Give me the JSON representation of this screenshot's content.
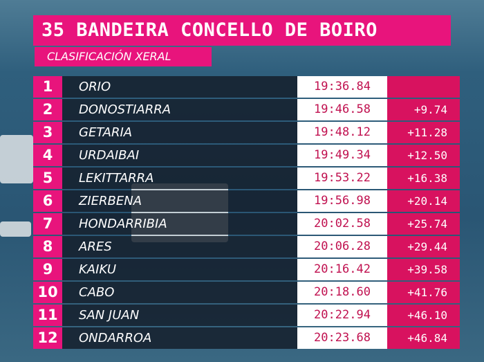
{
  "header": {
    "title": "35 BANDEIRA CONCELLO DE BOIRO",
    "subtitle": "CLASIFICACIÓN XERAL"
  },
  "table": {
    "rows": [
      [
        "1",
        "ORIO",
        "19:36.84"
      ],
      [
        "2",
        "DONOSTIARRA",
        "19:46.58",
        "+9.74"
      ],
      [
        "3",
        "GETARIA",
        "19:48.12",
        "+11.28"
      ],
      [
        "4",
        "URDAIBAI",
        "19:49.34",
        "+12.50"
      ],
      [
        "5",
        "LEKITTARRA",
        "19:53.22",
        "+16.38"
      ],
      [
        "6",
        "ZIERBENA",
        "19:56.98",
        "+20.14"
      ],
      [
        "7",
        "HONDARRIBIA",
        "20:02.58",
        "+25.74"
      ],
      [
        "8",
        "ARES",
        "20:06.28",
        "+29.44"
      ],
      [
        "9",
        "KAIKU",
        "20:16.42",
        "+39.58"
      ],
      [
        "10",
        "CABO",
        "20:18.60",
        "+41.76"
      ],
      [
        "11",
        "SAN JUAN",
        "20:22.94",
        "+46.10"
      ],
      [
        "12",
        "ONDARROA",
        "20:23.68",
        "+46.84"
      ]
    ]
  }
}
